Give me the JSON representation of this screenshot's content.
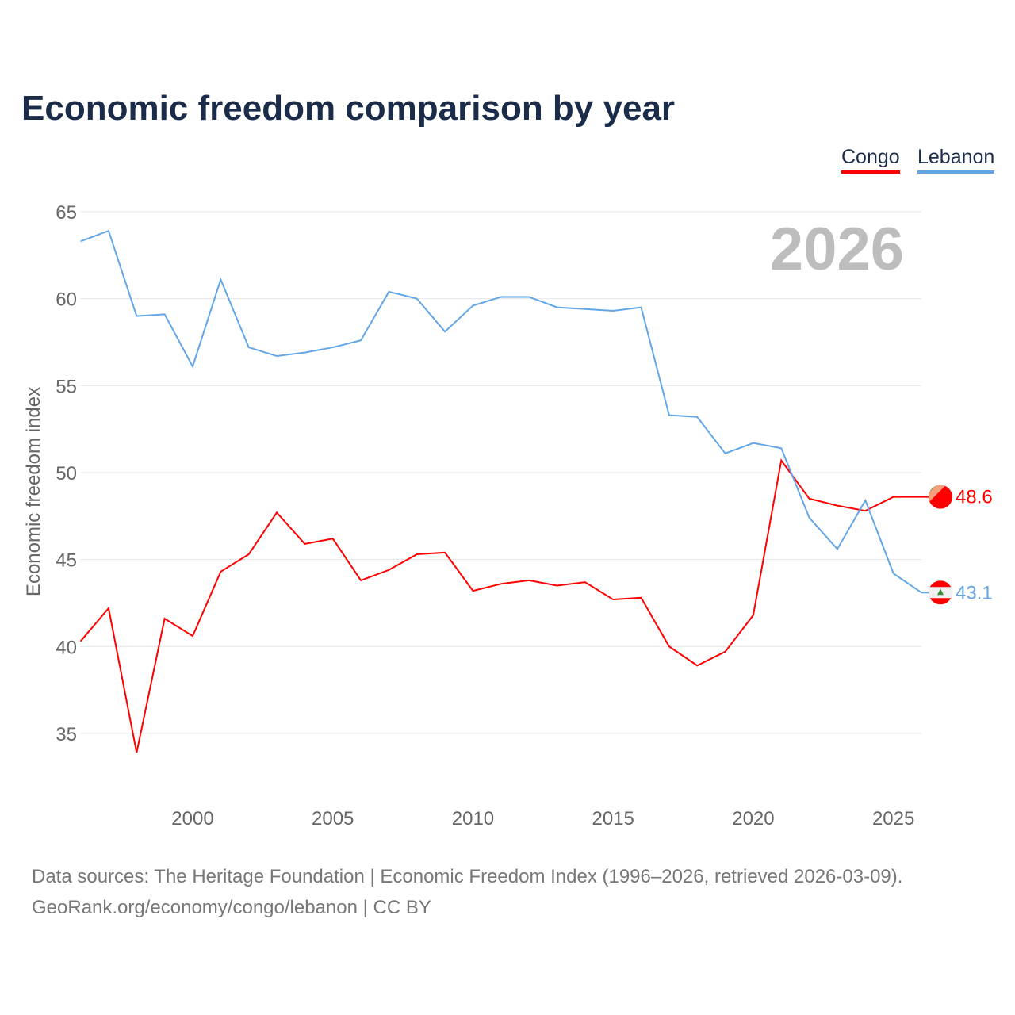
{
  "title": "Economic freedom comparison by year",
  "source_line1": "Data sources: The Heritage Foundation | Economic Freedom Index (1996–2026, retrieved 2026-03-09).",
  "source_line2": "GeoRank.org/economy/congo/lebanon | CC BY",
  "chart_data": {
    "type": "line",
    "title": "Economic freedom comparison by year",
    "ylabel": "Economic freedom index",
    "xlabel": "",
    "year_label": "2026",
    "xlim": [
      1996,
      2026
    ],
    "ylim": [
      31,
      65
    ],
    "yticks": [
      35,
      40,
      45,
      50,
      55,
      60,
      65
    ],
    "xticks": [
      2000,
      2005,
      2010,
      2015,
      2020,
      2025
    ],
    "grid": true,
    "legend": "top-right",
    "x": [
      1996,
      1997,
      1998,
      1999,
      2000,
      2001,
      2002,
      2003,
      2004,
      2005,
      2006,
      2007,
      2008,
      2009,
      2010,
      2011,
      2012,
      2013,
      2014,
      2015,
      2016,
      2017,
      2018,
      2019,
      2020,
      2021,
      2022,
      2023,
      2024,
      2025,
      2026
    ],
    "series": [
      {
        "name": "Congo",
        "color": "#ff0000",
        "end_label": "48.6",
        "values": [
          40.3,
          42.2,
          33.9,
          41.6,
          40.6,
          44.3,
          45.3,
          47.7,
          45.9,
          46.2,
          43.8,
          44.4,
          45.3,
          45.4,
          43.2,
          43.6,
          43.8,
          43.5,
          43.7,
          42.7,
          42.8,
          40.0,
          38.9,
          39.7,
          41.8,
          50.7,
          48.5,
          48.1,
          47.8,
          48.6,
          48.6
        ]
      },
      {
        "name": "Lebanon",
        "color": "#63a6e8",
        "end_label": "43.1",
        "values": [
          63.3,
          63.9,
          59.0,
          59.1,
          56.1,
          61.1,
          57.2,
          56.7,
          56.9,
          57.2,
          57.6,
          60.4,
          60.0,
          58.1,
          59.6,
          60.1,
          60.1,
          59.5,
          59.4,
          59.3,
          59.5,
          53.3,
          53.2,
          51.1,
          51.7,
          51.4,
          47.4,
          45.6,
          48.4,
          44.2,
          43.1
        ]
      }
    ]
  }
}
